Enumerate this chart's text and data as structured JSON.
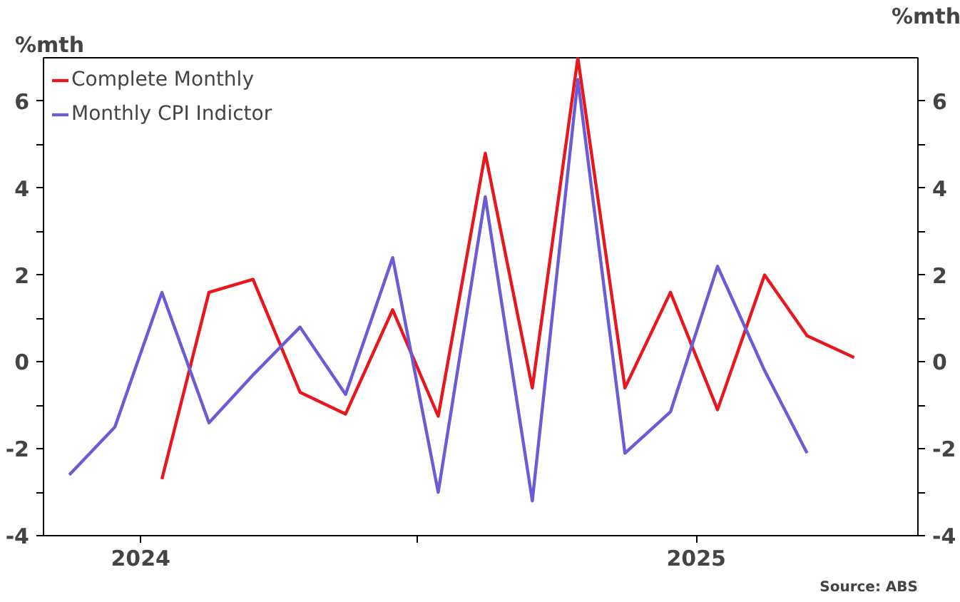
{
  "chart_data": {
    "type": "line",
    "ylabel": "%mth",
    "y2label": "%mth",
    "x": [
      "2023-11-15",
      "2023-12-15",
      "2024-01-15",
      "2024-02-15",
      "2024-03-15",
      "2024-04-15",
      "2024-05-15",
      "2024-06-15",
      "2024-07-15",
      "2024-08-15",
      "2024-09-15",
      "2024-10-15",
      "2024-11-15",
      "2024-12-15",
      "2025-01-15",
      "2025-02-15",
      "2025-03-15",
      "2025-04-15"
    ],
    "xlim": [
      "2023-10-29",
      "2025-05-27"
    ],
    "xticks": [
      {
        "value": "2024",
        "label": "2024"
      },
      {
        "value": "2024-07",
        "label": null
      },
      {
        "value": "2025",
        "label": "2025"
      }
    ],
    "ylim": [
      -4,
      7
    ],
    "yticks": [
      -4,
      {
        "value": -3,
        "label": null
      },
      -2,
      {
        "value": -1,
        "label": null
      },
      0,
      {
        "value": 1,
        "label": null
      },
      2,
      {
        "value": 3,
        "label": null
      },
      4,
      {
        "value": 5,
        "label": null
      },
      6
    ],
    "y2lim": [
      -4,
      7
    ],
    "y2ticks": [
      -4,
      {
        "value": -3,
        "label": null
      },
      -2,
      {
        "value": -1,
        "label": null
      },
      0,
      {
        "value": 1,
        "label": null
      },
      2,
      {
        "value": 3,
        "label": null
      },
      4,
      {
        "value": 5,
        "label": null
      },
      6
    ],
    "series": [
      {
        "name": "Complete Monthly",
        "color": "#e8171d",
        "values": [
          null,
          null,
          -2.7,
          1.6,
          1.9,
          -0.7,
          -1.2,
          1.2,
          -1.25,
          4.8,
          -0.6,
          7.0,
          -0.6,
          1.6,
          -1.1,
          2.0,
          0.6,
          0.1
        ]
      },
      {
        "name": "Monthly CPI Indictor",
        "color": "#6b5bd6",
        "values": [
          -2.6,
          -1.5,
          1.6,
          -1.4,
          -0.3,
          0.8,
          -0.75,
          2.4,
          -3.0,
          3.8,
          -3.2,
          6.5,
          -2.1,
          -1.15,
          2.2,
          -0.2,
          -2.1,
          null
        ]
      }
    ],
    "legend": "top left",
    "grid": false,
    "marker": "none",
    "line_style": "solid",
    "annotations": [
      "Source: ABS"
    ]
  }
}
